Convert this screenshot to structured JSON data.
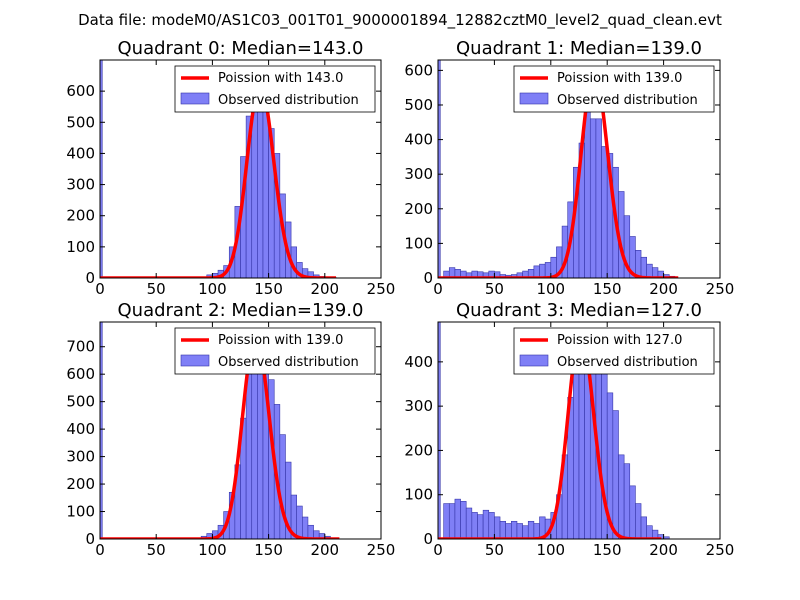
{
  "figure_title": "Data file: modeM0/AS1C03_001T01_9000001894_12882cztM0_level2_quad_clean.evt",
  "colors": {
    "bar_fill": "#7f7ff6",
    "bar_edge": "#3535a8",
    "poisson_line": "#ff0000",
    "axis": "#000000"
  },
  "chart_data": [
    {
      "type": "bar",
      "title": "Quadrant 0: Median=143.0",
      "median": 143.0,
      "xlim": [
        0,
        250
      ],
      "ylim": [
        0,
        700
      ],
      "xticks": [
        "0",
        "50",
        "100",
        "150",
        "200",
        "250"
      ],
      "yticks": [
        "0",
        "100",
        "200",
        "300",
        "400",
        "500",
        "600"
      ],
      "bin_width": 5,
      "first_bar": {
        "x": 0,
        "width": 2,
        "value": 700
      },
      "bin_starts": [
        95,
        100,
        105,
        110,
        115,
        120,
        125,
        130,
        135,
        140,
        145,
        150,
        155,
        160,
        165,
        170,
        175,
        180,
        185,
        190,
        195,
        200,
        205
      ],
      "values": [
        10,
        15,
        25,
        40,
        100,
        230,
        390,
        520,
        570,
        600,
        570,
        480,
        400,
        270,
        180,
        100,
        50,
        30,
        20,
        10,
        5,
        3,
        2
      ],
      "line": {
        "label": "Poission with 143.0",
        "mean": 143.0,
        "scale": 618,
        "x_range": [
          0,
          210
        ]
      },
      "legend": [
        "Poission with 143.0",
        "Observed distribution"
      ]
    },
    {
      "type": "bar",
      "title": "Quadrant 1: Median=139.0",
      "median": 139.0,
      "xlim": [
        0,
        250
      ],
      "ylim": [
        0,
        630
      ],
      "xticks": [
        "0",
        "50",
        "100",
        "150",
        "200",
        "250"
      ],
      "yticks": [
        "0",
        "100",
        "200",
        "300",
        "400",
        "500",
        "600"
      ],
      "bin_width": 5,
      "first_bar": {
        "x": 0,
        "width": 2,
        "value": 630
      },
      "bin_starts": [
        5,
        10,
        15,
        20,
        25,
        30,
        35,
        40,
        45,
        50,
        55,
        60,
        65,
        70,
        75,
        80,
        85,
        90,
        95,
        100,
        105,
        110,
        115,
        120,
        125,
        130,
        135,
        140,
        145,
        150,
        155,
        160,
        165,
        170,
        175,
        180,
        185,
        190,
        195,
        200,
        205
      ],
      "values": [
        20,
        30,
        25,
        20,
        15,
        20,
        18,
        15,
        20,
        18,
        10,
        8,
        10,
        15,
        20,
        25,
        35,
        40,
        45,
        60,
        90,
        150,
        220,
        320,
        390,
        480,
        460,
        460,
        380,
        360,
        320,
        250,
        180,
        120,
        80,
        60,
        40,
        30,
        20,
        10,
        5
      ],
      "line": {
        "label": "Poission with 139.0",
        "mean": 139.0,
        "scale": 595,
        "x_range": [
          0,
          213
        ]
      },
      "legend": [
        "Poission with 139.0",
        "Observed distribution"
      ]
    },
    {
      "type": "bar",
      "title": "Quadrant 2: Median=139.0",
      "median": 139.0,
      "xlim": [
        0,
        250
      ],
      "ylim": [
        0,
        790
      ],
      "xticks": [
        "0",
        "50",
        "100",
        "150",
        "200",
        "250"
      ],
      "yticks": [
        "0",
        "100",
        "200",
        "300",
        "400",
        "500",
        "600",
        "700"
      ],
      "bin_width": 5,
      "first_bar": {
        "x": 0,
        "width": 2,
        "value": 790
      },
      "bin_starts": [
        90,
        95,
        100,
        105,
        110,
        115,
        120,
        125,
        130,
        135,
        140,
        145,
        150,
        155,
        160,
        165,
        170,
        175,
        180,
        185,
        190,
        195,
        200
      ],
      "values": [
        10,
        20,
        30,
        50,
        100,
        170,
        270,
        440,
        600,
        660,
        700,
        650,
        580,
        490,
        380,
        280,
        160,
        120,
        80,
        50,
        30,
        20,
        10
      ],
      "line": {
        "label": "Poission with 139.0",
        "mean": 139.0,
        "scale": 740,
        "x_range": [
          0,
          213
        ]
      },
      "legend": [
        "Poission with 139.0",
        "Observed distribution"
      ]
    },
    {
      "type": "bar",
      "title": "Quadrant 3: Median=127.0",
      "median": 127.0,
      "xlim": [
        0,
        250
      ],
      "ylim": [
        0,
        490
      ],
      "xticks": [
        "0",
        "50",
        "100",
        "150",
        "200",
        "250"
      ],
      "yticks": [
        "0",
        "100",
        "200",
        "300",
        "400"
      ],
      "bin_width": 5,
      "first_bar": {
        "x": 0,
        "width": 2,
        "value": 490
      },
      "bin_starts": [
        5,
        10,
        15,
        20,
        25,
        30,
        35,
        40,
        45,
        50,
        55,
        60,
        65,
        70,
        75,
        80,
        85,
        90,
        95,
        100,
        105,
        110,
        115,
        120,
        125,
        130,
        135,
        140,
        145,
        150,
        155,
        160,
        165,
        170,
        175,
        180,
        185,
        190,
        195,
        200
      ],
      "values": [
        80,
        80,
        90,
        85,
        70,
        60,
        55,
        65,
        60,
        50,
        40,
        35,
        40,
        35,
        30,
        40,
        35,
        50,
        45,
        60,
        100,
        190,
        320,
        410,
        450,
        460,
        420,
        460,
        390,
        330,
        290,
        190,
        170,
        120,
        80,
        50,
        30,
        20,
        10,
        5
      ],
      "line": {
        "label": "Poission with 127.0",
        "mean": 127.0,
        "scale": 468,
        "x_range": [
          0,
          198
        ]
      },
      "legend": [
        "Poission with 127.0",
        "Observed distribution"
      ]
    }
  ]
}
